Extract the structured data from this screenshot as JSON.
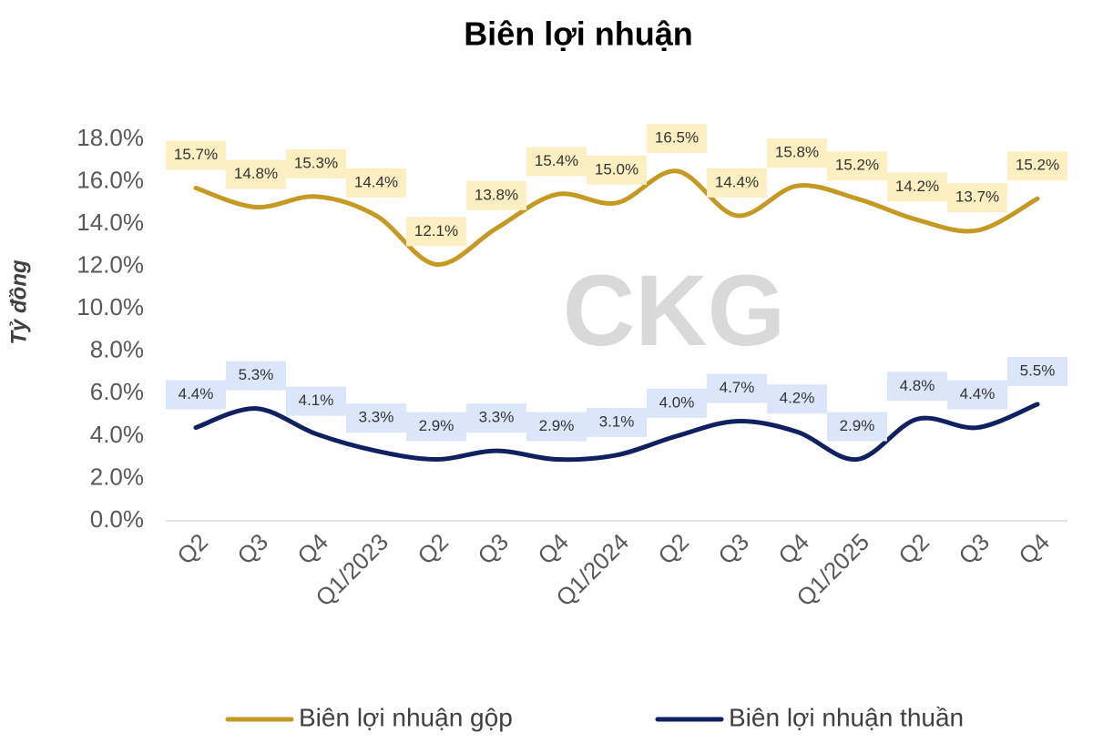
{
  "chart_data": {
    "type": "line",
    "title": "Biên lợi nhuận",
    "y_label": "Tỷ đồng",
    "watermark": "CKG",
    "categories": [
      "Q2",
      "Q3",
      "Q4",
      "Q1/2023",
      "Q2",
      "Q3",
      "Q4",
      "Q1/2024",
      "Q2",
      "Q3",
      "Q4",
      "Q1/2025",
      "Q2",
      "Q3",
      "Q4"
    ],
    "series": [
      {
        "name": "Biên lợi nhuận gộp",
        "color": "#c49a22",
        "label_bg": "#fcefc2",
        "values": [
          15.7,
          14.8,
          15.3,
          14.4,
          12.1,
          13.8,
          15.4,
          15.0,
          16.5,
          14.4,
          15.8,
          15.2,
          14.2,
          13.7,
          15.2
        ],
        "value_labels": [
          "15.7%",
          "14.8%",
          "15.3%",
          "14.4%",
          "12.1%",
          "13.8%",
          "15.4%",
          "15.0%",
          "16.5%",
          "14.4%",
          "15.8%",
          "15.2%",
          "14.2%",
          "13.7%",
          "15.2%"
        ]
      },
      {
        "name": "Biên lợi nhuận thuần",
        "color": "#0f2160",
        "label_bg": "#dbe6fb",
        "values": [
          4.4,
          5.3,
          4.1,
          3.3,
          2.9,
          3.3,
          2.9,
          3.1,
          4.0,
          4.7,
          4.2,
          2.9,
          4.8,
          4.4,
          5.5
        ],
        "value_labels": [
          "4.4%",
          "5.3%",
          "4.1%",
          "3.3%",
          "2.9%",
          "3.3%",
          "2.9%",
          "3.1%",
          "4.0%",
          "4.7%",
          "4.2%",
          "2.9%",
          "4.8%",
          "4.4%",
          "5.5%"
        ]
      }
    ],
    "ylim": [
      0,
      18
    ],
    "yticks": [
      {
        "value": 0,
        "label": "0.0%"
      },
      {
        "value": 2,
        "label": "2.0%"
      },
      {
        "value": 4,
        "label": "4.0%"
      },
      {
        "value": 6,
        "label": "6.0%"
      },
      {
        "value": 8,
        "label": "8.0%"
      },
      {
        "value": 10,
        "label": "10.0%"
      },
      {
        "value": 12,
        "label": "12.0%"
      },
      {
        "value": 14,
        "label": "14.0%"
      },
      {
        "value": 16,
        "label": "16.0%"
      },
      {
        "value": 18,
        "label": "18.0%"
      }
    ],
    "grid": false,
    "smooth": true,
    "legend": "bottom"
  }
}
